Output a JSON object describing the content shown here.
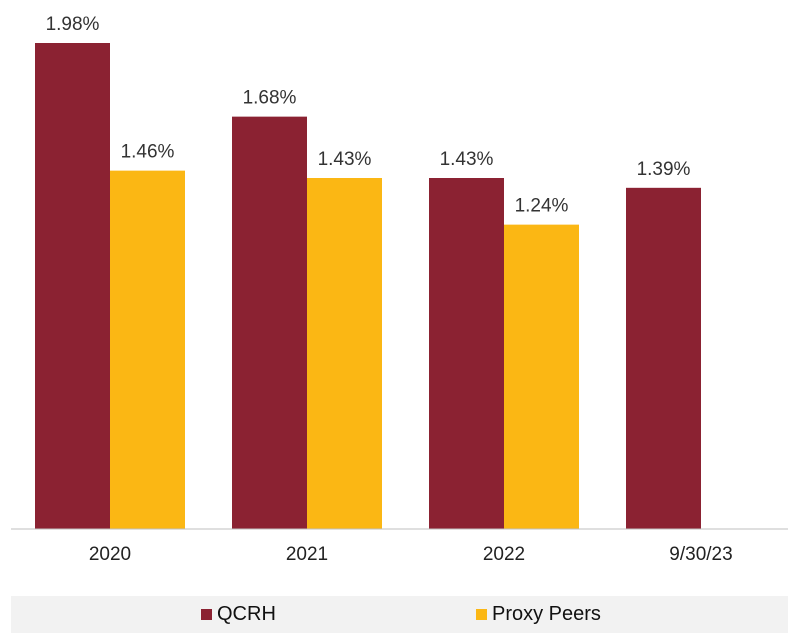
{
  "chart_data": {
    "type": "bar",
    "categories": [
      "2020",
      "2021",
      "2022",
      "9/30/23"
    ],
    "series": [
      {
        "name": "QCRH",
        "values": [
          1.98,
          1.68,
          1.43,
          1.39
        ],
        "labels": [
          "1.98%",
          "1.68%",
          "1.43%",
          "1.39%"
        ],
        "color": "#8b2232"
      },
      {
        "name": "Proxy Peers",
        "values": [
          1.46,
          1.43,
          1.24,
          null
        ],
        "labels": [
          "1.46%",
          "1.43%",
          "1.24%",
          null
        ],
        "color": "#fbb714"
      }
    ],
    "ylim": [
      0,
      2.0
    ],
    "grid": false,
    "legend_position": "bottom"
  }
}
